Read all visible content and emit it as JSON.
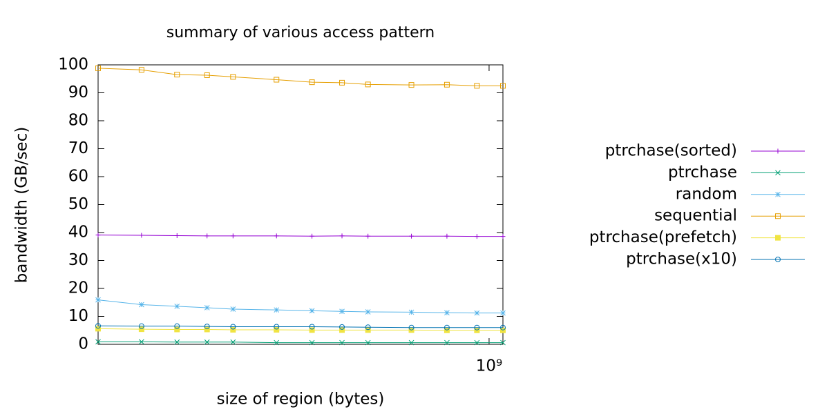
{
  "chart_data": {
    "type": "line",
    "title": "summary of various access pattern",
    "x_label": "size of region (bytes)",
    "y_label": "bandwidth (GB/sec)",
    "x_scale": "log",
    "grid": false,
    "legend": "right",
    "x": [
      134217728,
      167772160,
      201326592,
      234881024,
      268435456,
      335544320,
      402653184,
      469762048,
      536870912,
      671088640,
      805306368,
      939524096,
      1073741824
    ],
    "xlim": [
      134217728,
      1073741824
    ],
    "xticks": [
      {
        "value": 1000000000,
        "label": "10⁹"
      }
    ],
    "ylim": [
      0,
      100
    ],
    "yticks": [
      0,
      10,
      20,
      30,
      40,
      50,
      60,
      70,
      80,
      90,
      100
    ],
    "series": [
      {
        "name": "ptrchase(sorted)",
        "color": "#9400d3",
        "marker": "plus",
        "values": [
          39.1,
          39.0,
          38.9,
          38.8,
          38.8,
          38.8,
          38.7,
          38.8,
          38.7,
          38.7,
          38.7,
          38.6,
          38.6
        ]
      },
      {
        "name": "ptrchase",
        "color": "#009e73",
        "marker": "cross",
        "values": [
          0.9,
          0.9,
          0.8,
          0.8,
          0.8,
          0.6,
          0.6,
          0.6,
          0.6,
          0.6,
          0.6,
          0.6,
          0.6
        ]
      },
      {
        "name": "random",
        "color": "#56b4e9",
        "marker": "star",
        "values": [
          15.9,
          14.2,
          13.6,
          13.1,
          12.6,
          12.3,
          12.0,
          11.8,
          11.6,
          11.5,
          11.3,
          11.2,
          11.2
        ]
      },
      {
        "name": "sequential",
        "color": "#e69f00",
        "marker": "square",
        "values": [
          98.8,
          98.2,
          96.5,
          96.3,
          95.7,
          94.7,
          93.8,
          93.6,
          93.0,
          92.8,
          92.9,
          92.5,
          92.5
        ]
      },
      {
        "name": "ptrchase(prefetch)",
        "color": "#f0e442",
        "marker": "filled-square",
        "values": [
          5.6,
          5.4,
          5.3,
          5.3,
          5.2,
          5.2,
          5.1,
          5.1,
          5.1,
          5.1,
          5.0,
          5.0,
          5.0
        ]
      },
      {
        "name": "ptrchase(x10)",
        "color": "#0072b2",
        "marker": "circle",
        "values": [
          6.6,
          6.5,
          6.5,
          6.4,
          6.3,
          6.3,
          6.3,
          6.2,
          6.1,
          6.0,
          6.0,
          6.0,
          6.0
        ]
      }
    ]
  }
}
